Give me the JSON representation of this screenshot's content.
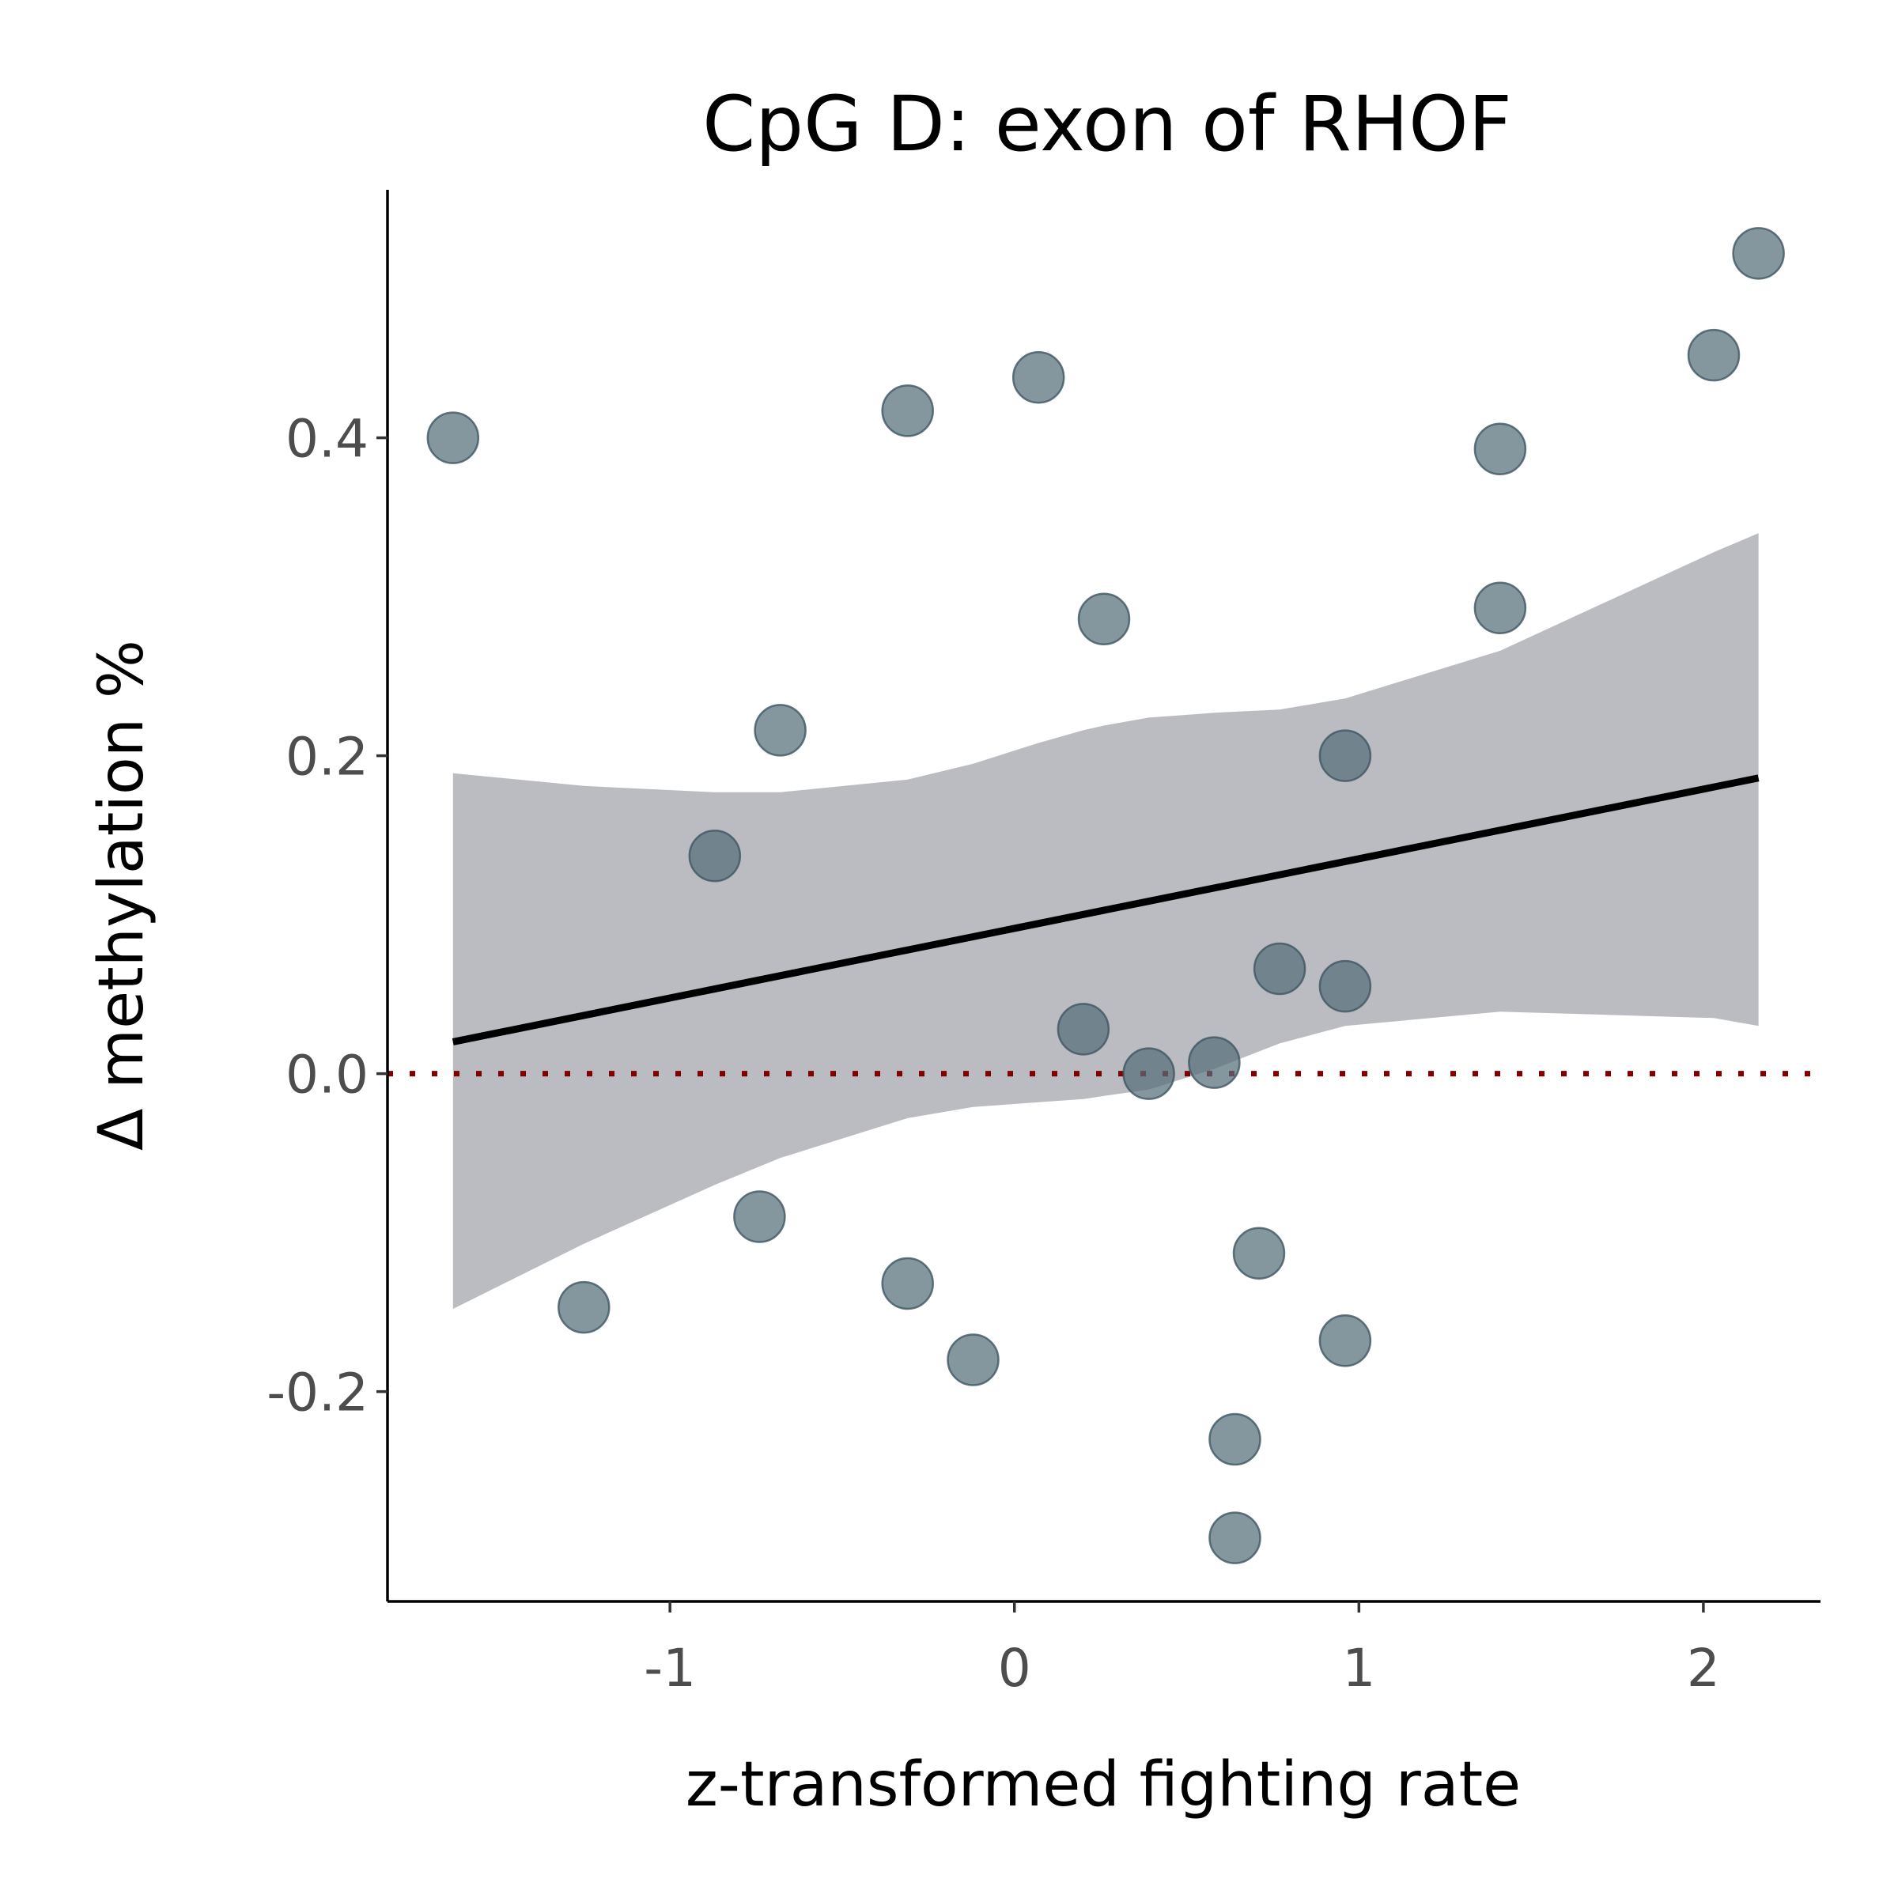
{
  "chart_data": {
    "type": "scatter",
    "title": "CpG D: exon of RHOF",
    "xlabel": "z-transformed fighting rate",
    "ylabel": "Δ methylation %",
    "xlim": [
      -1.82,
      2.34
    ],
    "ylim": [
      -0.332,
      0.556
    ],
    "x_ticks": [
      {
        "value": -1,
        "label": "-1"
      },
      {
        "value": 0,
        "label": "0"
      },
      {
        "value": 1,
        "label": "1"
      },
      {
        "value": 2,
        "label": "2"
      }
    ],
    "y_ticks": [
      {
        "value": -0.2,
        "label": "-0.2"
      },
      {
        "value": 0.0,
        "label": "0.0"
      },
      {
        "value": 0.2,
        "label": "0.2"
      },
      {
        "value": 0.4,
        "label": "0.4"
      }
    ],
    "grid": false,
    "points": [
      {
        "x": -1.63,
        "y": 0.4
      },
      {
        "x": -1.25,
        "y": -0.147
      },
      {
        "x": -0.87,
        "y": 0.137
      },
      {
        "x": -0.74,
        "y": -0.09
      },
      {
        "x": -0.68,
        "y": 0.216
      },
      {
        "x": -0.31,
        "y": 0.417
      },
      {
        "x": -0.31,
        "y": -0.132
      },
      {
        "x": -0.12,
        "y": -0.18
      },
      {
        "x": 0.07,
        "y": 0.438
      },
      {
        "x": 0.2,
        "y": 0.028
      },
      {
        "x": 0.26,
        "y": 0.286
      },
      {
        "x": 0.39,
        "y": 0.0
      },
      {
        "x": 0.58,
        "y": 0.007
      },
      {
        "x": 0.64,
        "y": -0.23
      },
      {
        "x": 0.64,
        "y": -0.292
      },
      {
        "x": 0.71,
        "y": -0.113
      },
      {
        "x": 0.77,
        "y": 0.066
      },
      {
        "x": 0.96,
        "y": 0.2
      },
      {
        "x": 0.96,
        "y": 0.055
      },
      {
        "x": 0.96,
        "y": -0.168
      },
      {
        "x": 1.41,
        "y": 0.393
      },
      {
        "x": 1.41,
        "y": 0.293
      },
      {
        "x": 2.03,
        "y": 0.452
      },
      {
        "x": 2.16,
        "y": 0.516
      }
    ],
    "regression_line": {
      "x": [
        -1.63,
        2.16
      ],
      "y": [
        0.02,
        0.186
      ]
    },
    "confidence_band": {
      "x": [
        -1.63,
        -1.25,
        -0.87,
        -0.68,
        -0.31,
        -0.12,
        0.07,
        0.2,
        0.26,
        0.39,
        0.58,
        0.77,
        0.96,
        1.41,
        2.03,
        2.16
      ],
      "lower": [
        -0.148,
        -0.107,
        -0.07,
        -0.053,
        -0.028,
        -0.021,
        -0.018,
        -0.016,
        -0.014,
        -0.01,
        0.003,
        0.019,
        0.03,
        0.039,
        0.035,
        0.03
      ],
      "upper": [
        0.189,
        0.181,
        0.177,
        0.177,
        0.185,
        0.195,
        0.208,
        0.216,
        0.219,
        0.224,
        0.227,
        0.229,
        0.236,
        0.266,
        0.328,
        0.34
      ]
    },
    "reference_line": {
      "y": 0.0,
      "style": "dotted",
      "color": "#7f0000"
    },
    "colors": {
      "points": "#546e79",
      "point_stroke": "#3f5561",
      "regression_line": "#000000",
      "confidence_band": "#a9abb2",
      "axis": "#000000"
    }
  }
}
